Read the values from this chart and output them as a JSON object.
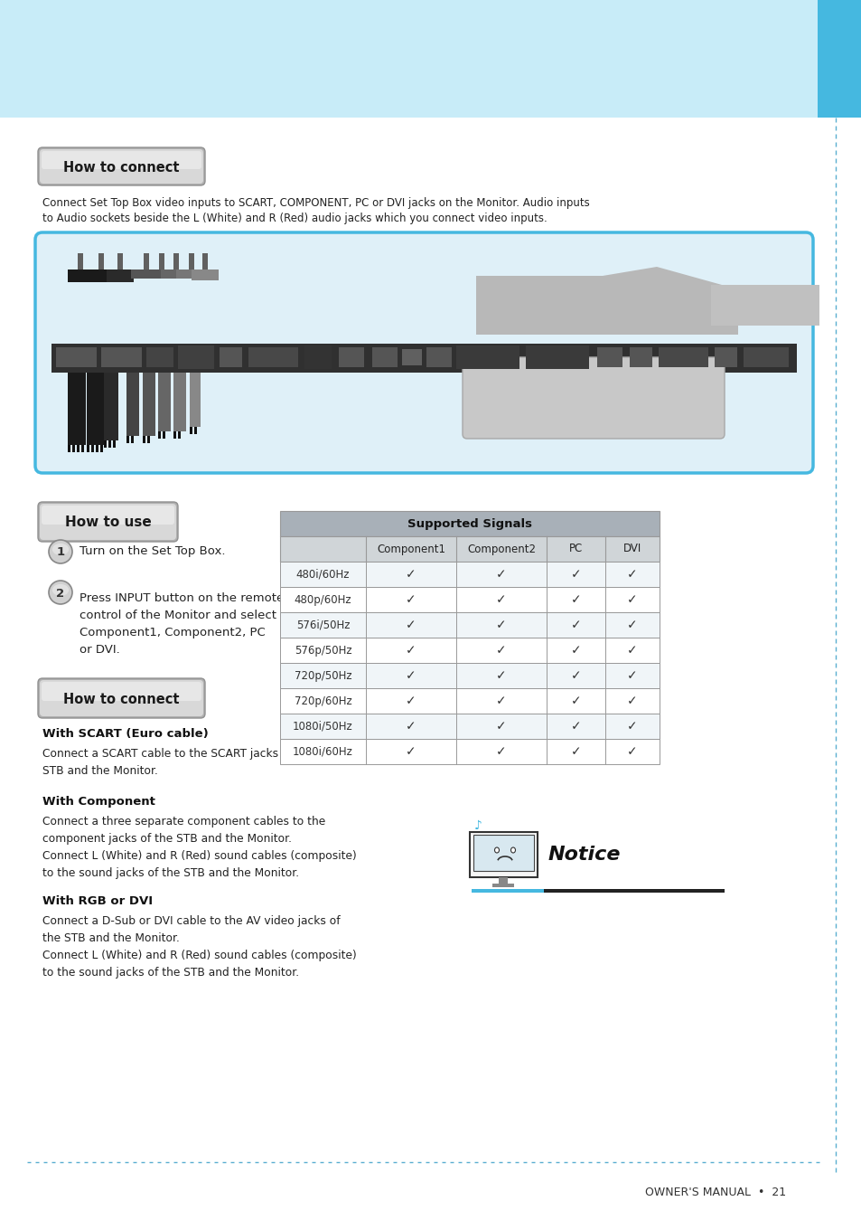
{
  "bg_header_color": "#c8ecf8",
  "bg_sidebar_color": "#45b8e0",
  "bg_white": "#ffffff",
  "dashed_line_color": "#5aaed0",
  "section1_label": "How to connect",
  "section1_text_line1": "Connect Set Top Box video inputs to SCART, COMPONENT, PC or DVI jacks on the Monitor. Audio inputs",
  "section1_text_line2": "to Audio sockets beside the L (White) and R (Red) audio jacks which you connect video inputs.",
  "howto_use_label": "How to use",
  "step1": "Turn on the Set Top Box.",
  "step2_text": "Press INPUT button on the remote\ncontrol of the Monitor and select\nComponent1, Component2, PC\nor DVI.",
  "table_title": "Supported Signals",
  "table_cols": [
    "",
    "Component1",
    "Component2",
    "PC",
    "DVI"
  ],
  "table_rows": [
    [
      "480i/60Hz",
      "✓",
      "✓",
      "✓",
      "✓"
    ],
    [
      "480p/60Hz",
      "✓",
      "✓",
      "✓",
      "✓"
    ],
    [
      "576i/50Hz",
      "✓",
      "✓",
      "✓",
      "✓"
    ],
    [
      "576p/50Hz",
      "✓",
      "✓",
      "✓",
      "✓"
    ],
    [
      "720p/50Hz",
      "✓",
      "✓",
      "✓",
      "✓"
    ],
    [
      "720p/60Hz",
      "✓",
      "✓",
      "✓",
      "✓"
    ],
    [
      "1080i/50Hz",
      "✓",
      "✓",
      "✓",
      "✓"
    ],
    [
      "1080i/60Hz",
      "✓",
      "✓",
      "✓",
      "✓"
    ]
  ],
  "section2_label": "How to connect",
  "with_scart_title": "With SCART (Euro cable)",
  "with_scart_text": "Connect a SCART cable to the SCART jacks of the\nSTB and the Monitor.",
  "with_component_title": "With Component",
  "with_component_text": "Connect a three separate component cables to the\ncomponent jacks of the STB and the Monitor.\nConnect L (White) and R (Red) sound cables (composite)\nto the sound jacks of the STB and the Monitor.",
  "with_rgb_title": "With RGB or DVI",
  "with_rgb_text": "Connect a D-Sub or DVI cable to the AV video jacks of\nthe STB and the Monitor.\nConnect L (White) and R (Red) sound cables (composite)\nto the sound jacks of the STB and the Monitor.",
  "notice_text": "Notice",
  "page_num": "OWNER'S MANUAL  •  21",
  "table_header_bg": "#a8b0b8",
  "table_subheader_bg": "#d0d5d8",
  "table_row_bg": "#ffffff",
  "table_border": "#999999",
  "connector_box_border": "#45b8e0",
  "connector_box_fill": "#dff0f8"
}
